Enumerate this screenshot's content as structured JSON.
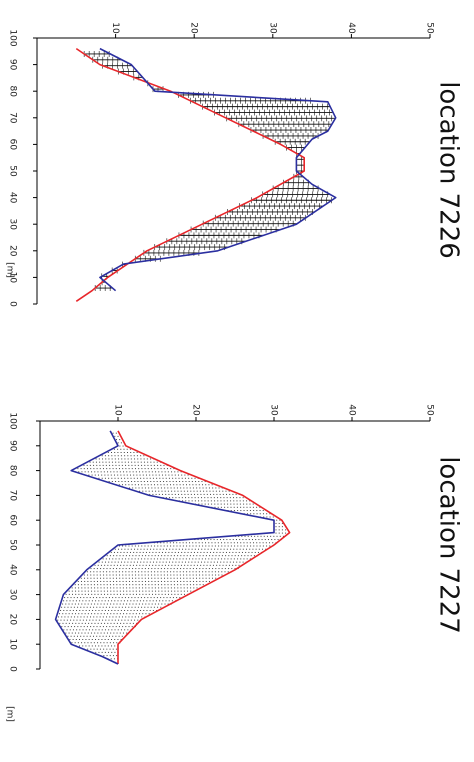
{
  "chart_data": [
    {
      "type": "line",
      "title": "location 7226",
      "xlabel": "[m]",
      "ylabel": "",
      "xlim": [
        0,
        100
      ],
      "ylim": [
        0,
        50
      ],
      "x_ticks": [
        "0",
        "10",
        "20",
        "30",
        "40",
        "50",
        "60",
        "70",
        "80",
        "90",
        "100"
      ],
      "y_ticks": [
        "10",
        "20",
        "30",
        "40",
        "50"
      ],
      "grid": false,
      "fill_between": "error-bars",
      "series": [
        {
          "color": "#e8262a",
          "x": [
            1,
            5,
            10,
            20,
            30,
            40,
            50,
            55,
            60,
            70,
            80,
            90,
            96
          ],
          "y": [
            5,
            7,
            9,
            14,
            21,
            28,
            34,
            34,
            31,
            24,
            17,
            8,
            5
          ]
        },
        {
          "color": "#2b2fa0",
          "x": [
            5,
            10,
            15,
            20,
            30,
            40,
            45,
            50,
            55,
            62,
            65,
            70,
            76,
            80,
            90,
            96
          ],
          "y": [
            10,
            8,
            11,
            23,
            33,
            38,
            35,
            33,
            33,
            35,
            37,
            38,
            37,
            15,
            12,
            8
          ]
        }
      ]
    },
    {
      "type": "line",
      "title": "location 7227",
      "xlabel": "[m]",
      "ylabel": "",
      "xlim": [
        0,
        100
      ],
      "ylim": [
        0,
        50
      ],
      "x_ticks": [
        "0",
        "10",
        "20",
        "30",
        "40",
        "50",
        "60",
        "70",
        "80",
        "90",
        "100"
      ],
      "y_ticks": [
        "10",
        "20",
        "30",
        "40",
        "50"
      ],
      "grid": false,
      "fill_between": "dotted",
      "series": [
        {
          "color": "#e8262a",
          "x": [
            2,
            10,
            20,
            30,
            40,
            50,
            55,
            60,
            70,
            80,
            90,
            96
          ],
          "y": [
            10,
            10,
            13,
            19,
            25,
            30,
            32,
            31,
            26,
            18,
            11,
            10
          ]
        },
        {
          "color": "#2b2fa0",
          "x": [
            2,
            5,
            10,
            20,
            30,
            40,
            50,
            55,
            60,
            70,
            80,
            90,
            96
          ],
          "y": [
            10,
            8,
            4,
            2,
            3,
            6,
            10,
            30,
            30,
            14,
            4,
            10,
            9
          ]
        }
      ]
    }
  ]
}
